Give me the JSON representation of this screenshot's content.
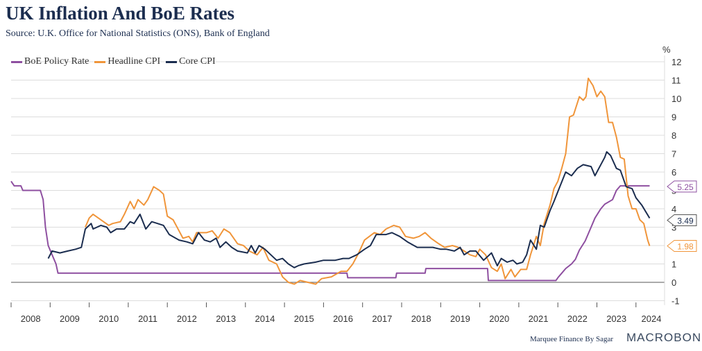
{
  "header": {
    "title": "UK Inflation And BoE Rates",
    "subtitle": "Source: U.K. Office for National Statistics (ONS), Bank of England"
  },
  "footer": {
    "credit": "Marquee Finance By Sagar",
    "brand": "MACROBOND"
  },
  "chart_data": {
    "type": "line",
    "title": "UK Inflation And BoE Rates",
    "ylabel": "%",
    "ylim": [
      -1,
      12
    ],
    "yticks": [
      -1,
      0,
      1,
      2,
      3,
      4,
      5,
      6,
      7,
      8,
      9,
      10,
      11,
      12
    ],
    "xlim": [
      2008,
      2024.75
    ],
    "xticks": [
      "2008",
      "2009",
      "2010",
      "2011",
      "2012",
      "2013",
      "2014",
      "2015",
      "2016",
      "2017",
      "2018",
      "2019",
      "2020",
      "2021",
      "2022",
      "2023",
      "2024"
    ],
    "legend": "top-left",
    "grid": true,
    "series": [
      {
        "name": "BoE Policy Rate",
        "color": "#8e4fa0",
        "last_label": "5.25",
        "points": [
          [
            2008.0,
            5.5
          ],
          [
            2008.08,
            5.25
          ],
          [
            2008.25,
            5.25
          ],
          [
            2008.3,
            5.0
          ],
          [
            2008.75,
            5.0
          ],
          [
            2008.82,
            4.5
          ],
          [
            2008.88,
            3.0
          ],
          [
            2008.95,
            2.0
          ],
          [
            2009.05,
            1.5
          ],
          [
            2009.15,
            1.0
          ],
          [
            2009.2,
            0.5
          ],
          [
            2016.6,
            0.5
          ],
          [
            2016.62,
            0.25
          ],
          [
            2017.85,
            0.25
          ],
          [
            2017.87,
            0.5
          ],
          [
            2018.6,
            0.5
          ],
          [
            2018.62,
            0.75
          ],
          [
            2020.2,
            0.75
          ],
          [
            2020.22,
            0.1
          ],
          [
            2021.95,
            0.1
          ],
          [
            2022.0,
            0.25
          ],
          [
            2022.1,
            0.5
          ],
          [
            2022.2,
            0.75
          ],
          [
            2022.35,
            1.0
          ],
          [
            2022.45,
            1.25
          ],
          [
            2022.55,
            1.75
          ],
          [
            2022.7,
            2.25
          ],
          [
            2022.85,
            3.0
          ],
          [
            2022.95,
            3.5
          ],
          [
            2023.1,
            4.0
          ],
          [
            2023.2,
            4.25
          ],
          [
            2023.4,
            4.5
          ],
          [
            2023.5,
            5.0
          ],
          [
            2023.6,
            5.25
          ],
          [
            2024.35,
            5.25
          ]
        ]
      },
      {
        "name": "Headline CPI",
        "color": "#f0953a",
        "last_label": "1.98",
        "points": [
          [
            2009.9,
            3.0
          ],
          [
            2010.0,
            3.5
          ],
          [
            2010.1,
            3.7
          ],
          [
            2010.3,
            3.4
          ],
          [
            2010.5,
            3.1
          ],
          [
            2010.6,
            3.2
          ],
          [
            2010.8,
            3.3
          ],
          [
            2010.9,
            3.7
          ],
          [
            2011.05,
            4.4
          ],
          [
            2011.15,
            4.0
          ],
          [
            2011.25,
            4.5
          ],
          [
            2011.4,
            4.2
          ],
          [
            2011.5,
            4.5
          ],
          [
            2011.65,
            5.2
          ],
          [
            2011.8,
            5.0
          ],
          [
            2011.9,
            4.8
          ],
          [
            2012.0,
            3.6
          ],
          [
            2012.15,
            3.4
          ],
          [
            2012.3,
            2.8
          ],
          [
            2012.4,
            2.4
          ],
          [
            2012.55,
            2.5
          ],
          [
            2012.65,
            2.2
          ],
          [
            2012.75,
            2.7
          ],
          [
            2012.85,
            2.7
          ],
          [
            2013.0,
            2.7
          ],
          [
            2013.15,
            2.8
          ],
          [
            2013.3,
            2.4
          ],
          [
            2013.45,
            2.9
          ],
          [
            2013.6,
            2.7
          ],
          [
            2013.8,
            2.1
          ],
          [
            2013.95,
            2.0
          ],
          [
            2014.1,
            1.7
          ],
          [
            2014.3,
            1.5
          ],
          [
            2014.45,
            1.9
          ],
          [
            2014.6,
            1.2
          ],
          [
            2014.8,
            1.0
          ],
          [
            2014.95,
            0.3
          ],
          [
            2015.1,
            0.0
          ],
          [
            2015.25,
            -0.1
          ],
          [
            2015.4,
            0.1
          ],
          [
            2015.6,
            0.0
          ],
          [
            2015.8,
            -0.1
          ],
          [
            2015.95,
            0.2
          ],
          [
            2016.2,
            0.3
          ],
          [
            2016.45,
            0.6
          ],
          [
            2016.6,
            0.6
          ],
          [
            2016.75,
            1.0
          ],
          [
            2016.9,
            1.6
          ],
          [
            2017.05,
            2.3
          ],
          [
            2017.3,
            2.7
          ],
          [
            2017.45,
            2.6
          ],
          [
            2017.6,
            2.9
          ],
          [
            2017.8,
            3.1
          ],
          [
            2017.95,
            3.0
          ],
          [
            2018.1,
            2.5
          ],
          [
            2018.3,
            2.4
          ],
          [
            2018.45,
            2.5
          ],
          [
            2018.6,
            2.7
          ],
          [
            2018.75,
            2.4
          ],
          [
            2018.95,
            2.1
          ],
          [
            2019.1,
            1.9
          ],
          [
            2019.3,
            2.0
          ],
          [
            2019.45,
            1.9
          ],
          [
            2019.6,
            1.7
          ],
          [
            2019.75,
            1.5
          ],
          [
            2019.9,
            1.4
          ],
          [
            2020.0,
            1.8
          ],
          [
            2020.15,
            1.5
          ],
          [
            2020.3,
            0.8
          ],
          [
            2020.45,
            0.6
          ],
          [
            2020.55,
            1.0
          ],
          [
            2020.65,
            0.2
          ],
          [
            2020.8,
            0.7
          ],
          [
            2020.9,
            0.3
          ],
          [
            2021.05,
            0.7
          ],
          [
            2021.2,
            0.7
          ],
          [
            2021.3,
            1.5
          ],
          [
            2021.45,
            2.5
          ],
          [
            2021.55,
            2.0
          ],
          [
            2021.65,
            3.2
          ],
          [
            2021.8,
            4.2
          ],
          [
            2021.9,
            5.1
          ],
          [
            2022.0,
            5.5
          ],
          [
            2022.1,
            6.2
          ],
          [
            2022.2,
            7.0
          ],
          [
            2022.3,
            9.0
          ],
          [
            2022.4,
            9.1
          ],
          [
            2022.55,
            10.1
          ],
          [
            2022.65,
            9.9
          ],
          [
            2022.72,
            10.1
          ],
          [
            2022.78,
            11.1
          ],
          [
            2022.9,
            10.7
          ],
          [
            2023.0,
            10.1
          ],
          [
            2023.1,
            10.4
          ],
          [
            2023.2,
            10.1
          ],
          [
            2023.3,
            8.7
          ],
          [
            2023.4,
            8.7
          ],
          [
            2023.5,
            7.9
          ],
          [
            2023.6,
            6.8
          ],
          [
            2023.7,
            6.7
          ],
          [
            2023.8,
            4.7
          ],
          [
            2023.9,
            4.0
          ],
          [
            2024.0,
            4.0
          ],
          [
            2024.1,
            3.4
          ],
          [
            2024.2,
            3.2
          ],
          [
            2024.3,
            2.3
          ],
          [
            2024.35,
            1.98
          ]
        ]
      },
      {
        "name": "Core CPI",
        "color": "#1b2d4f",
        "last_label": "3.49",
        "points": [
          [
            2008.95,
            1.3
          ],
          [
            2009.05,
            1.7
          ],
          [
            2009.25,
            1.6
          ],
          [
            2009.45,
            1.7
          ],
          [
            2009.65,
            1.8
          ],
          [
            2009.8,
            1.9
          ],
          [
            2009.9,
            2.9
          ],
          [
            2010.05,
            3.2
          ],
          [
            2010.1,
            2.9
          ],
          [
            2010.3,
            3.1
          ],
          [
            2010.45,
            3.0
          ],
          [
            2010.55,
            2.7
          ],
          [
            2010.7,
            2.9
          ],
          [
            2010.9,
            2.9
          ],
          [
            2011.05,
            3.3
          ],
          [
            2011.15,
            3.2
          ],
          [
            2011.3,
            3.7
          ],
          [
            2011.45,
            2.9
          ],
          [
            2011.6,
            3.3
          ],
          [
            2011.75,
            3.2
          ],
          [
            2011.9,
            3.1
          ],
          [
            2012.05,
            2.6
          ],
          [
            2012.3,
            2.3
          ],
          [
            2012.5,
            2.2
          ],
          [
            2012.65,
            2.1
          ],
          [
            2012.8,
            2.7
          ],
          [
            2012.95,
            2.3
          ],
          [
            2013.1,
            2.2
          ],
          [
            2013.25,
            2.4
          ],
          [
            2013.35,
            1.9
          ],
          [
            2013.5,
            2.2
          ],
          [
            2013.65,
            1.9
          ],
          [
            2013.8,
            1.7
          ],
          [
            2014.05,
            1.6
          ],
          [
            2014.15,
            2.0
          ],
          [
            2014.25,
            1.6
          ],
          [
            2014.35,
            2.0
          ],
          [
            2014.5,
            1.8
          ],
          [
            2014.65,
            1.5
          ],
          [
            2014.8,
            1.2
          ],
          [
            2014.95,
            1.3
          ],
          [
            2015.1,
            1.0
          ],
          [
            2015.25,
            0.8
          ],
          [
            2015.35,
            0.9
          ],
          [
            2015.5,
            1.0
          ],
          [
            2015.8,
            1.1
          ],
          [
            2016.0,
            1.2
          ],
          [
            2016.3,
            1.2
          ],
          [
            2016.5,
            1.3
          ],
          [
            2016.65,
            1.3
          ],
          [
            2016.85,
            1.5
          ],
          [
            2017.05,
            1.8
          ],
          [
            2017.2,
            2.0
          ],
          [
            2017.35,
            2.6
          ],
          [
            2017.6,
            2.6
          ],
          [
            2017.75,
            2.7
          ],
          [
            2017.95,
            2.5
          ],
          [
            2018.15,
            2.2
          ],
          [
            2018.4,
            1.9
          ],
          [
            2018.55,
            1.9
          ],
          [
            2018.8,
            1.9
          ],
          [
            2019.0,
            1.8
          ],
          [
            2019.15,
            1.8
          ],
          [
            2019.35,
            1.7
          ],
          [
            2019.5,
            1.9
          ],
          [
            2019.6,
            1.5
          ],
          [
            2019.75,
            1.7
          ],
          [
            2019.9,
            1.7
          ],
          [
            2020.1,
            1.2
          ],
          [
            2020.3,
            1.6
          ],
          [
            2020.45,
            0.9
          ],
          [
            2020.55,
            1.3
          ],
          [
            2020.7,
            1.1
          ],
          [
            2020.85,
            1.2
          ],
          [
            2020.95,
            1.0
          ],
          [
            2021.1,
            1.1
          ],
          [
            2021.2,
            1.5
          ],
          [
            2021.3,
            2.3
          ],
          [
            2021.45,
            1.8
          ],
          [
            2021.55,
            3.1
          ],
          [
            2021.65,
            3.0
          ],
          [
            2021.8,
            3.9
          ],
          [
            2021.9,
            4.4
          ],
          [
            2022.05,
            5.2
          ],
          [
            2022.2,
            6.0
          ],
          [
            2022.35,
            5.8
          ],
          [
            2022.5,
            6.2
          ],
          [
            2022.65,
            6.4
          ],
          [
            2022.85,
            6.3
          ],
          [
            2022.95,
            5.8
          ],
          [
            2023.05,
            6.2
          ],
          [
            2023.2,
            6.8
          ],
          [
            2023.25,
            7.1
          ],
          [
            2023.35,
            6.9
          ],
          [
            2023.5,
            6.2
          ],
          [
            2023.6,
            6.1
          ],
          [
            2023.75,
            5.2
          ],
          [
            2023.9,
            5.1
          ],
          [
            2024.0,
            4.6
          ],
          [
            2024.15,
            4.2
          ],
          [
            2024.35,
            3.49
          ]
        ]
      }
    ]
  }
}
